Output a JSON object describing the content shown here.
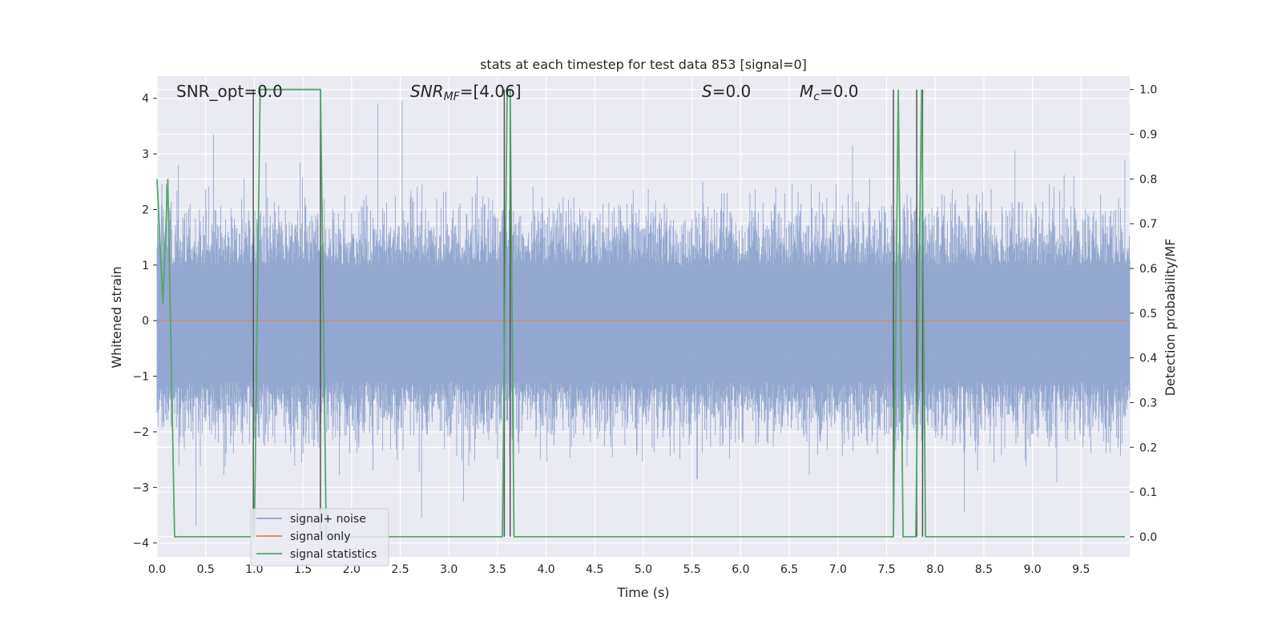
{
  "chart_data": {
    "type": "line",
    "title": "stats at each timestep for test data 853 [signal=0]",
    "xlabel": "Time (s)",
    "ylabel": "Whitened strain",
    "y2label": "Detection probability/MF",
    "xlim": [
      0,
      10
    ],
    "ylim": [
      -4.25,
      4.4
    ],
    "y2lim": [
      -0.045,
      1.03
    ],
    "x_ticks": [
      "0.0",
      "0.5",
      "1.0",
      "1.5",
      "2.0",
      "2.5",
      "3.0",
      "3.5",
      "4.0",
      "4.5",
      "5.0",
      "5.5",
      "6.0",
      "6.5",
      "7.0",
      "7.5",
      "8.0",
      "8.5",
      "9.0",
      "9.5"
    ],
    "y_ticks": [
      "4",
      "3",
      "2",
      "1",
      "0",
      "−1",
      "−2",
      "−3",
      "−4"
    ],
    "y2_ticks": [
      "1.0",
      "0.9",
      "0.8",
      "0.7",
      "0.6",
      "0.5",
      "0.4",
      "0.3",
      "0.2",
      "0.1",
      "0.0"
    ],
    "grid": true,
    "legend_position": "lower-left",
    "annotations": {
      "snr_opt": "SNR_opt=0.0",
      "snr_mf_main": "SNR",
      "snr_mf_sub": "MF",
      "snr_mf_value": "=[4.06]",
      "s_main": "S",
      "s_value": "=0.0",
      "mc_main": "M",
      "mc_sub": "c",
      "mc_value": "=0.0"
    },
    "series": [
      {
        "name": "signal+ noise",
        "color": "#8fa3cd",
        "axis": "left",
        "description": "dense noisy whitened strain, roughly -1.5..1.3 band with spikes",
        "spikes": [
          {
            "x": 0.1,
            "y": 2.1
          },
          {
            "x": 0.22,
            "y": 2.8
          },
          {
            "x": 0.4,
            "y": -3.7
          },
          {
            "x": 0.58,
            "y": 3.35
          },
          {
            "x": 1.12,
            "y": 2.85
          },
          {
            "x": 1.47,
            "y": 2.85
          },
          {
            "x": 2.27,
            "y": 3.9
          },
          {
            "x": 2.52,
            "y": 3.95
          },
          {
            "x": 2.72,
            "y": -3.55
          },
          {
            "x": 3.15,
            "y": -3.25
          },
          {
            "x": 5.55,
            "y": -2.85
          },
          {
            "x": 7.15,
            "y": 3.15
          },
          {
            "x": 8.3,
            "y": -3.45
          },
          {
            "x": 8.82,
            "y": 3.05
          },
          {
            "x": 9.25,
            "y": -2.9
          },
          {
            "x": 9.95,
            "y": 2.9
          }
        ]
      },
      {
        "name": "signal only",
        "color": "#dd8452",
        "axis": "left",
        "x": [
          0,
          10
        ],
        "y": [
          0,
          0
        ]
      },
      {
        "name": "signal statistics",
        "color": "#55a868",
        "axis": "right",
        "x": [
          0,
          0.06,
          0.11,
          0.18,
          1.0,
          1.06,
          1.68,
          1.74,
          3.55,
          3.6,
          3.63,
          3.67,
          7.57,
          7.62,
          7.67,
          7.8,
          7.86,
          7.9,
          9.95
        ],
        "y": [
          0.8,
          0.52,
          0.8,
          0.0,
          0.0,
          1.0,
          1.0,
          0.0,
          0.0,
          1.0,
          1.0,
          0.0,
          0.0,
          1.0,
          0.0,
          0.0,
          1.0,
          0.0,
          0.0
        ]
      }
    ],
    "vertical_markers": {
      "color": "#555555",
      "x": [
        0.99,
        1.68,
        3.57,
        3.63,
        7.57,
        7.81,
        7.87
      ]
    }
  },
  "colors": {
    "plot_background": "#eaeaf2",
    "grid": "#ffffff"
  }
}
